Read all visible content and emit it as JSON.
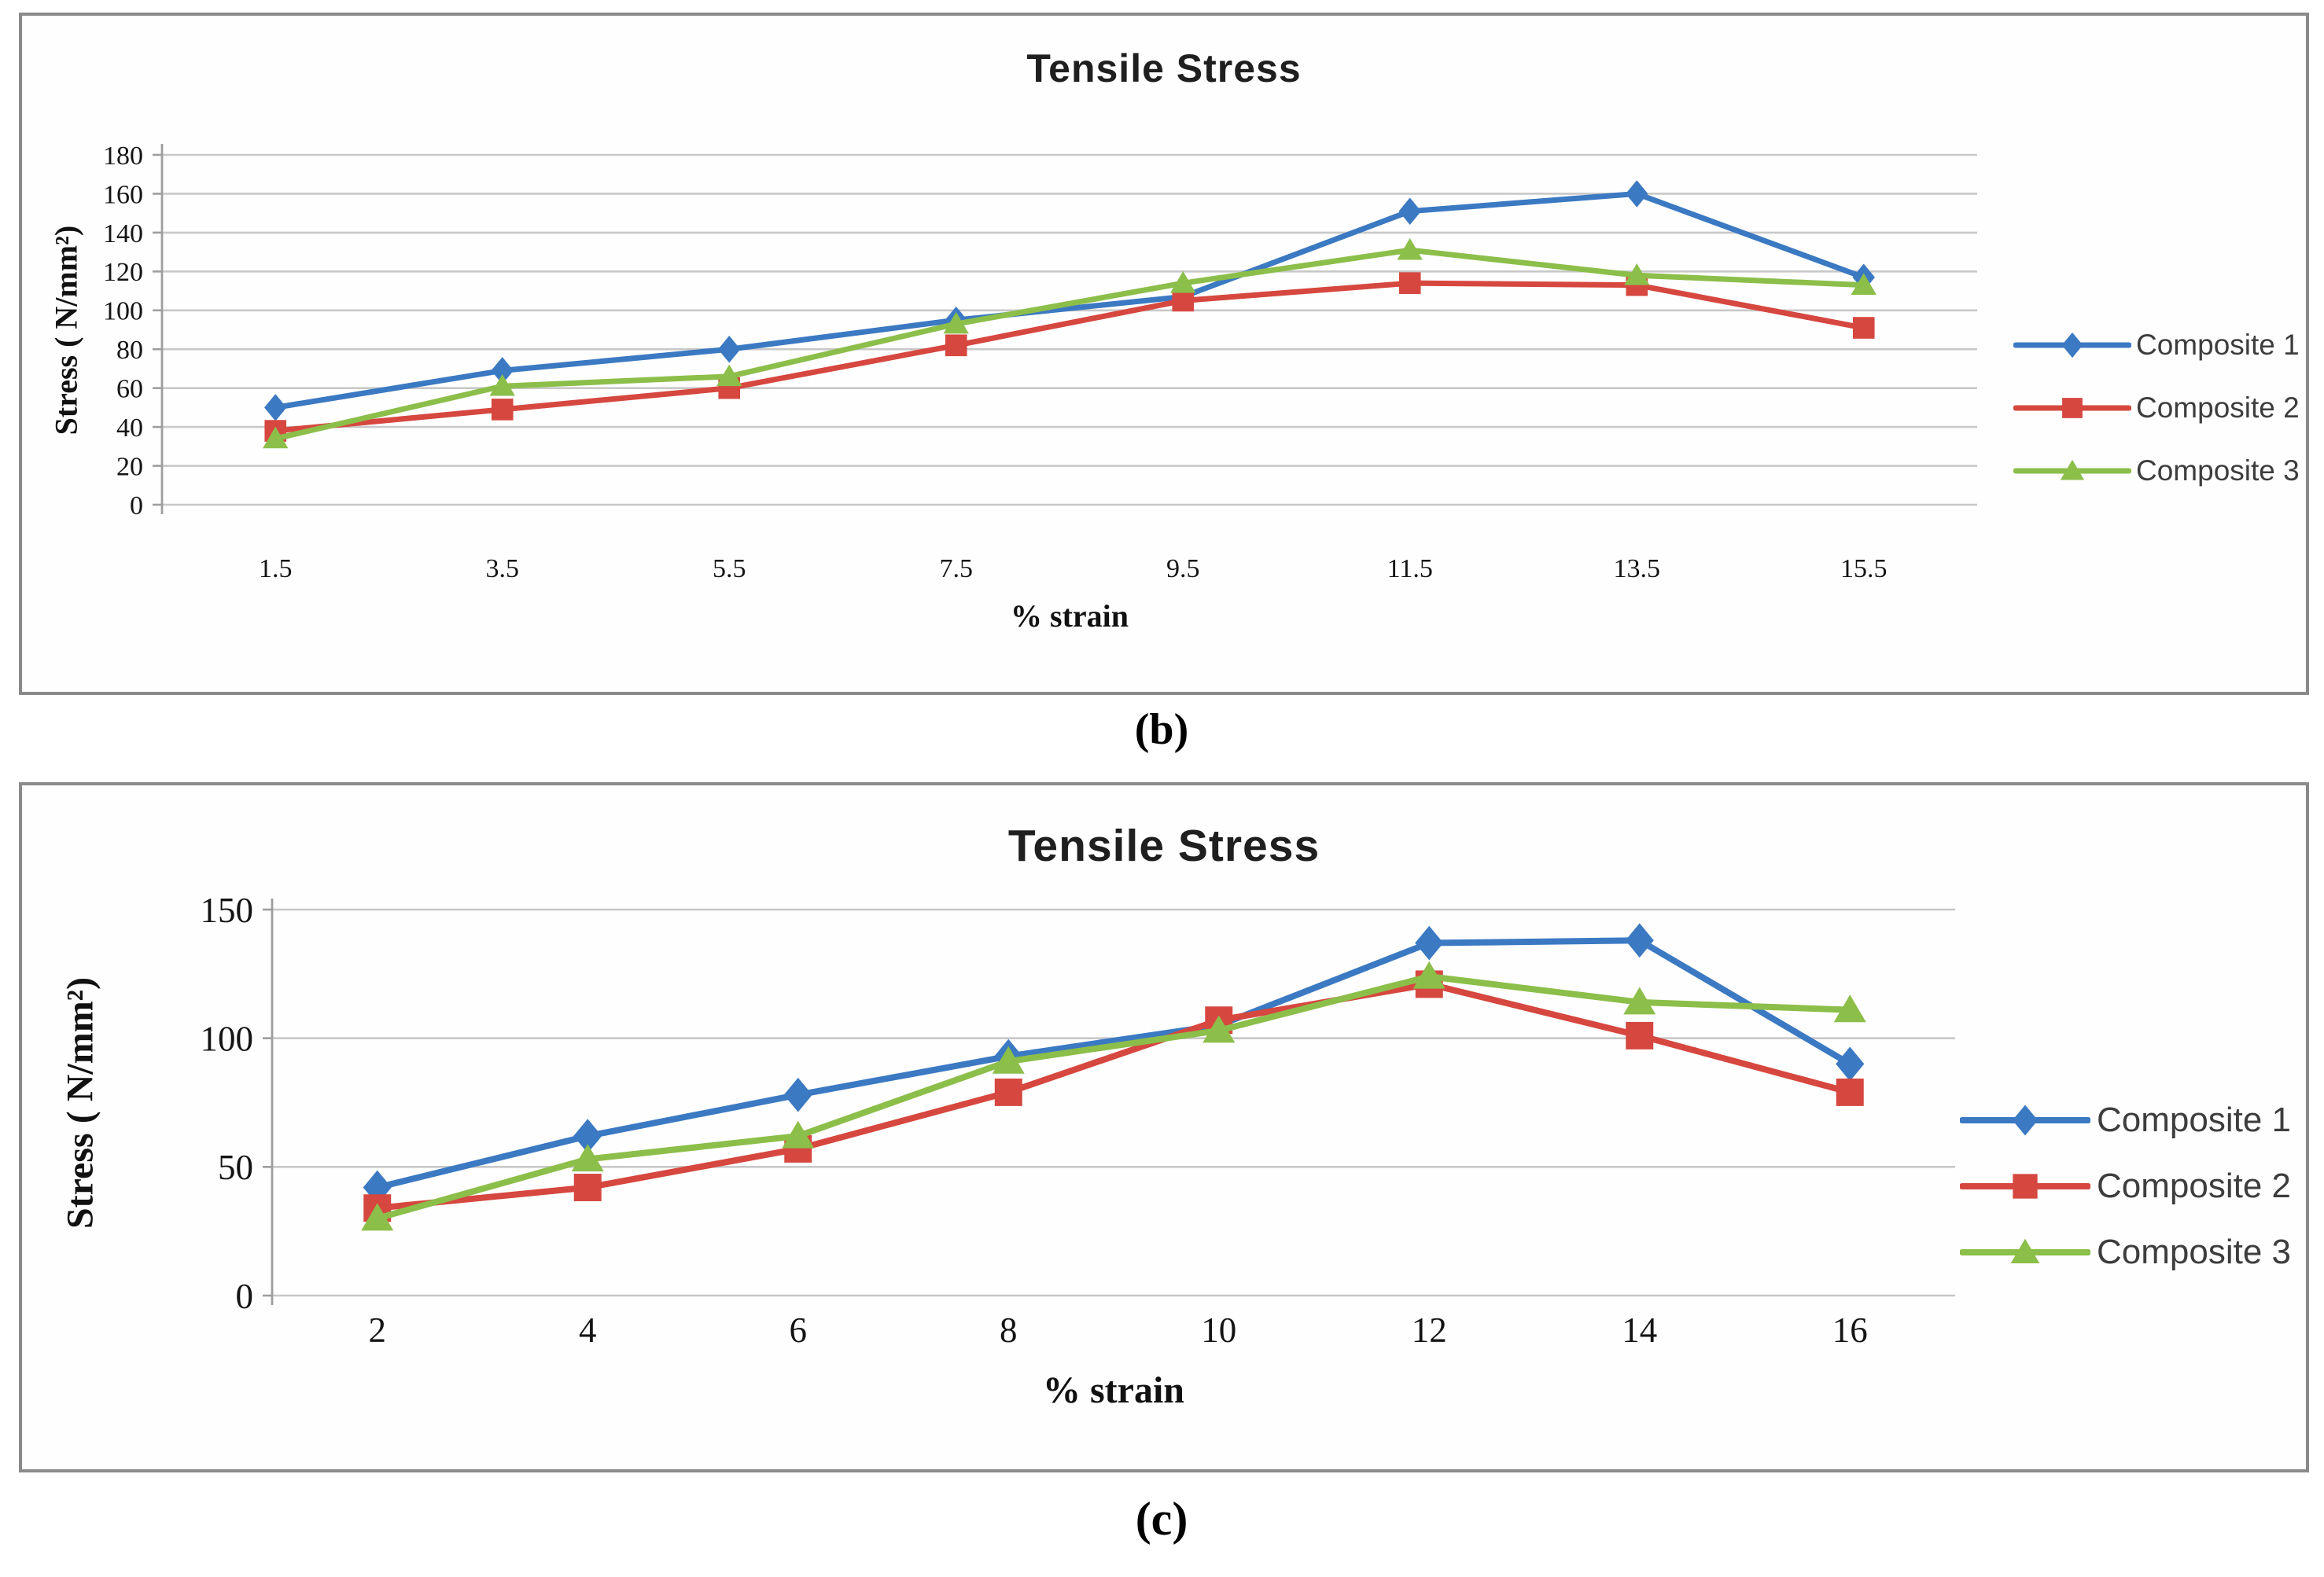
{
  "page": {
    "background": "#ffffff"
  },
  "colors": {
    "panel_border": "#8a8a8a",
    "gridline": "#c8c8c8",
    "axis": "#9e9e9e",
    "title_text": "#1f1f1f",
    "tick_text": "#141414",
    "legend_text": "#3d3d3d",
    "caption_text": "#000000",
    "composite1": "#3b79c2",
    "composite2": "#d6473f",
    "composite3": "#8cbe4a"
  },
  "captions": {
    "b": "(b)",
    "c": "(c)"
  },
  "chart_data": [
    {
      "id": "chart-b",
      "type": "line",
      "title": "Tensile Stress",
      "xlabel": "% strain",
      "ylabel": "Stress ( N/mm²)",
      "caption": "(b)",
      "categories": [
        "1.5",
        "3.5",
        "5.5",
        "7.5",
        "9.5",
        "11.5",
        "13.5",
        "15.5"
      ],
      "ylim": [
        0,
        180
      ],
      "ytick_step": 20,
      "ytick_labels": [
        "0",
        "20",
        "40",
        "60",
        "80",
        "100",
        "120",
        "140",
        "160",
        "180"
      ],
      "grid": true,
      "legend_position": "right",
      "series": [
        {
          "name": "Composite 1",
          "marker": "diamond",
          "color": "#3b79c2",
          "values": [
            50,
            69,
            80,
            95,
            107,
            151,
            160,
            117
          ]
        },
        {
          "name": "Composite 2",
          "marker": "square",
          "color": "#d6473f",
          "values": [
            38,
            49,
            60,
            82,
            105,
            114,
            113,
            91
          ]
        },
        {
          "name": "Composite 3",
          "marker": "triangle",
          "color": "#8cbe4a",
          "values": [
            34,
            61,
            66,
            93,
            114,
            131,
            118,
            113
          ]
        }
      ]
    },
    {
      "id": "chart-c",
      "type": "line",
      "title": "Tensile Stress",
      "xlabel": "% strain",
      "ylabel": "Stress ( N/mm²)",
      "caption": "(c)",
      "categories": [
        "2",
        "4",
        "6",
        "8",
        "10",
        "12",
        "14",
        "16"
      ],
      "ylim": [
        0,
        150
      ],
      "ytick_step": 50,
      "ytick_labels": [
        "0",
        "50",
        "100",
        "150"
      ],
      "grid": true,
      "legend_position": "right",
      "series": [
        {
          "name": "Composite 1",
          "marker": "diamond",
          "color": "#3b79c2",
          "values": [
            42,
            62,
            78,
            93,
            105,
            137,
            138,
            90
          ]
        },
        {
          "name": "Composite 2",
          "marker": "square",
          "color": "#d6473f",
          "values": [
            34,
            42,
            57,
            79,
            107,
            121,
            101,
            79
          ]
        },
        {
          "name": "Composite 3",
          "marker": "triangle",
          "color": "#8cbe4a",
          "values": [
            30,
            53,
            62,
            91,
            103,
            124,
            114,
            111
          ]
        }
      ]
    }
  ]
}
